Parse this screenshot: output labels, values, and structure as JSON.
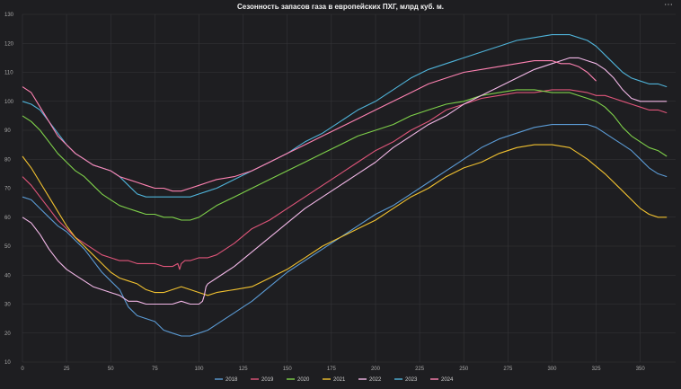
{
  "window": {
    "menu_icon": "more-icon",
    "menu_glyph": "⋯"
  },
  "chart_data": {
    "type": "line",
    "title": "Сезонность запасов газа в европейских ПХГ, млрд куб. м.",
    "xlabel": "",
    "ylabel": "",
    "xlim": [
      0,
      370
    ],
    "ylim": [
      10,
      130
    ],
    "xticks": [
      0,
      25,
      50,
      75,
      100,
      125,
      150,
      175,
      200,
      225,
      250,
      275,
      300,
      325,
      350
    ],
    "yticks": [
      10,
      20,
      30,
      40,
      50,
      60,
      70,
      80,
      90,
      100,
      110,
      120,
      130
    ],
    "grid": true,
    "legend_position": "bottom-center",
    "series": [
      {
        "name": "2018",
        "color": "#5b9bd5",
        "x": [
          0,
          5,
          10,
          15,
          20,
          25,
          30,
          35,
          40,
          45,
          50,
          55,
          60,
          65,
          70,
          75,
          80,
          85,
          90,
          95,
          100,
          105,
          110,
          115,
          120,
          125,
          130,
          140,
          150,
          160,
          170,
          180,
          190,
          200,
          210,
          220,
          230,
          240,
          250,
          260,
          270,
          280,
          290,
          300,
          310,
          320,
          325,
          330,
          335,
          340,
          345,
          350,
          355,
          360,
          365
        ],
        "y": [
          67,
          66,
          63,
          60,
          57,
          55,
          52,
          49,
          45,
          41,
          38,
          35,
          29,
          26,
          25,
          24,
          21,
          20,
          19,
          19,
          20,
          21,
          23,
          25,
          27,
          29,
          31,
          36,
          41,
          45,
          49,
          53,
          57,
          61,
          64,
          68,
          72,
          76,
          80,
          84,
          87,
          89,
          91,
          92,
          92,
          92,
          91,
          89,
          87,
          85,
          83,
          80,
          77,
          75,
          74
        ]
      },
      {
        "name": "2019",
        "color": "#e0557a",
        "x": [
          0,
          5,
          10,
          15,
          20,
          25,
          30,
          35,
          40,
          45,
          50,
          55,
          60,
          65,
          70,
          75,
          80,
          85,
          88,
          89,
          90,
          92,
          95,
          100,
          105,
          110,
          120,
          130,
          140,
          150,
          160,
          170,
          180,
          190,
          200,
          210,
          220,
          230,
          240,
          250,
          260,
          270,
          280,
          290,
          300,
          310,
          320,
          325,
          330,
          335,
          340,
          345,
          350,
          355,
          360,
          365
        ],
        "y": [
          74,
          71,
          67,
          63,
          59,
          56,
          53,
          51,
          49,
          47,
          46,
          45,
          45,
          44,
          44,
          44,
          43,
          43,
          44,
          42,
          44,
          45,
          45,
          46,
          46,
          47,
          51,
          56,
          59,
          63,
          67,
          71,
          75,
          79,
          83,
          86,
          90,
          93,
          97,
          99,
          101,
          102,
          103,
          103,
          104,
          104,
          103,
          102,
          102,
          101,
          100,
          99,
          98,
          97,
          97,
          96
        ]
      },
      {
        "name": "2020",
        "color": "#7fd14a",
        "x": [
          0,
          5,
          10,
          15,
          20,
          25,
          30,
          35,
          40,
          45,
          50,
          55,
          60,
          65,
          70,
          75,
          80,
          85,
          90,
          95,
          100,
          105,
          110,
          120,
          130,
          140,
          150,
          160,
          170,
          180,
          190,
          200,
          210,
          220,
          230,
          240,
          250,
          260,
          270,
          280,
          290,
          300,
          310,
          320,
          325,
          330,
          335,
          340,
          345,
          350,
          355,
          360,
          365
        ],
        "y": [
          95,
          93,
          90,
          86,
          82,
          79,
          76,
          74,
          71,
          68,
          66,
          64,
          63,
          62,
          61,
          61,
          60,
          60,
          59,
          59,
          60,
          62,
          64,
          67,
          70,
          73,
          76,
          79,
          82,
          85,
          88,
          90,
          92,
          95,
          97,
          99,
          100,
          102,
          103,
          104,
          104,
          103,
          103,
          101,
          100,
          98,
          95,
          91,
          88,
          86,
          84,
          83,
          81
        ]
      },
      {
        "name": "2021",
        "color": "#f2c230",
        "x": [
          0,
          5,
          10,
          15,
          20,
          25,
          30,
          35,
          40,
          45,
          50,
          55,
          60,
          65,
          70,
          75,
          80,
          85,
          90,
          95,
          100,
          105,
          110,
          120,
          130,
          140,
          150,
          160,
          170,
          180,
          190,
          200,
          210,
          220,
          230,
          240,
          250,
          260,
          270,
          280,
          290,
          300,
          310,
          320,
          330,
          340,
          345,
          350,
          355,
          360,
          365
        ],
        "y": [
          81,
          77,
          72,
          67,
          62,
          57,
          53,
          50,
          47,
          44,
          41,
          39,
          38,
          37,
          35,
          34,
          34,
          35,
          36,
          35,
          34,
          33,
          34,
          35,
          36,
          39,
          42,
          46,
          50,
          53,
          56,
          59,
          63,
          67,
          70,
          74,
          77,
          79,
          82,
          84,
          85,
          85,
          84,
          80,
          75,
          69,
          66,
          63,
          61,
          60,
          60
        ]
      },
      {
        "name": "2022",
        "color": "#f3b8e8",
        "x": [
          0,
          5,
          10,
          15,
          20,
          25,
          30,
          35,
          40,
          45,
          50,
          55,
          60,
          65,
          70,
          75,
          80,
          85,
          90,
          95,
          100,
          102,
          103,
          104,
          105,
          110,
          115,
          120,
          130,
          140,
          150,
          160,
          170,
          180,
          190,
          200,
          210,
          220,
          230,
          240,
          250,
          260,
          270,
          280,
          290,
          300,
          305,
          310,
          315,
          320,
          325,
          330,
          335,
          340,
          345,
          350,
          355,
          360,
          365
        ],
        "y": [
          60,
          58,
          54,
          49,
          45,
          42,
          40,
          38,
          36,
          35,
          34,
          33,
          31,
          31,
          30,
          30,
          30,
          30,
          31,
          30,
          30,
          31,
          33,
          36,
          37,
          39,
          41,
          43,
          48,
          53,
          58,
          63,
          67,
          71,
          75,
          79,
          84,
          88,
          92,
          95,
          99,
          102,
          105,
          108,
          111,
          113,
          114,
          115,
          115,
          114,
          113,
          111,
          108,
          104,
          101,
          100,
          100,
          100,
          100
        ]
      },
      {
        "name": "2023",
        "color": "#4fb3d9",
        "x": [
          0,
          5,
          10,
          15,
          20,
          25,
          30,
          35,
          40,
          45,
          50,
          55,
          60,
          65,
          70,
          75,
          80,
          85,
          90,
          95,
          100,
          105,
          110,
          120,
          130,
          140,
          150,
          160,
          170,
          180,
          190,
          200,
          210,
          220,
          230,
          240,
          250,
          260,
          270,
          280,
          290,
          300,
          305,
          310,
          315,
          320,
          325,
          330,
          335,
          340,
          345,
          350,
          355,
          360,
          365
        ],
        "y": [
          100,
          99,
          97,
          93,
          89,
          85,
          82,
          80,
          78,
          77,
          76,
          74,
          71,
          68,
          67,
          67,
          67,
          67,
          67,
          67,
          68,
          69,
          70,
          73,
          76,
          79,
          82,
          86,
          89,
          93,
          97,
          100,
          104,
          108,
          111,
          113,
          115,
          117,
          119,
          121,
          122,
          123,
          123,
          123,
          122,
          121,
          119,
          116,
          113,
          110,
          108,
          107,
          106,
          106,
          105
        ]
      },
      {
        "name": "2024",
        "color": "#ff82b2",
        "x": [
          0,
          5,
          10,
          15,
          20,
          25,
          30,
          35,
          40,
          45,
          50,
          55,
          60,
          65,
          70,
          75,
          80,
          85,
          90,
          95,
          100,
          105,
          110,
          120,
          130,
          140,
          150,
          160,
          170,
          180,
          190,
          200,
          210,
          220,
          230,
          240,
          250,
          260,
          270,
          280,
          290,
          300,
          305,
          310,
          315,
          320,
          325
        ],
        "y": [
          105,
          103,
          98,
          93,
          88,
          85,
          82,
          80,
          78,
          77,
          76,
          74,
          73,
          72,
          71,
          70,
          70,
          69,
          69,
          70,
          71,
          72,
          73,
          74,
          76,
          79,
          82,
          85,
          88,
          91,
          94,
          97,
          100,
          103,
          106,
          108,
          110,
          111,
          112,
          113,
          114,
          114,
          113,
          113,
          112,
          110,
          107
        ]
      }
    ]
  }
}
